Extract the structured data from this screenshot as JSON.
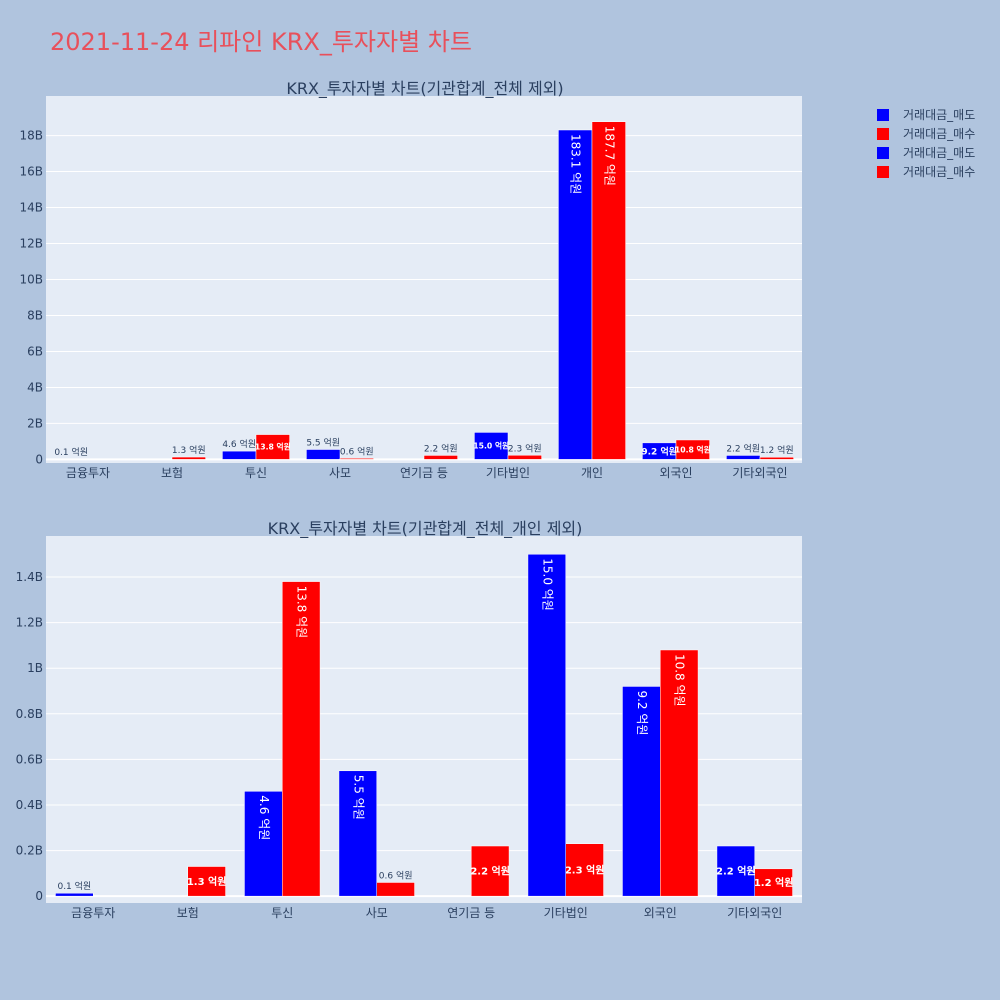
{
  "page_title": "2021-11-24 리파인 KRX_투자자별 차트",
  "legend": [
    {
      "label": "거래대금_매도",
      "color": "#0000ff"
    },
    {
      "label": "거래대금_매수",
      "color": "#ff0000"
    },
    {
      "label": "거래대금_매도",
      "color": "#0000ff"
    },
    {
      "label": "거래대금_매수",
      "color": "#ff0000"
    }
  ],
  "colors": {
    "sell": "#0000ff",
    "buy": "#ff0000",
    "plot_bg": "#e5ecf6",
    "page_bg": "#b0c4de"
  },
  "chart_data": [
    {
      "type": "bar",
      "title": "KRX_투자자별 차트(기관합계_전체 제외)",
      "categories": [
        "금융투자",
        "보험",
        "투신",
        "사모",
        "연기금 등",
        "기타법인",
        "개인",
        "외국인",
        "기타외국인"
      ],
      "series": [
        {
          "name": "거래대금_매도",
          "values": [
            0.013,
            0,
            0.46,
            0.55,
            0,
            1.5,
            18.31,
            0.92,
            0.22
          ],
          "labels": [
            "0.1 억원",
            "",
            "4.6 억원",
            "5.5 억원",
            "",
            "15.0 억원",
            "183.1 억원",
            "9.2 억원",
            "2.2 억원"
          ]
        },
        {
          "name": "거래대금_매수",
          "values": [
            0,
            0.13,
            1.38,
            0.06,
            0.22,
            0.23,
            18.77,
            1.08,
            0.12
          ],
          "labels": [
            "",
            "1.3 억원",
            "13.8 억원",
            "0.6 억원",
            "2.2 억원",
            "2.3 억원",
            "187.7 억원",
            "10.8 억원",
            "1.2 억원"
          ]
        }
      ],
      "y_ticks": [
        "0",
        "2B",
        "4B",
        "6B",
        "8B",
        "10B",
        "12B",
        "14B",
        "16B",
        "18B"
      ],
      "y_tick_values": [
        0,
        2,
        4,
        6,
        8,
        10,
        12,
        14,
        16,
        18
      ],
      "ylim": [
        -0.2,
        20.2
      ],
      "grid": true
    },
    {
      "type": "bar",
      "title": "KRX_투자자별 차트(기관합계_전체_개인 제외)",
      "categories": [
        "금융투자",
        "보험",
        "투신",
        "사모",
        "연기금 등",
        "기타법인",
        "외국인",
        "기타외국인"
      ],
      "series": [
        {
          "name": "거래대금_매도",
          "values": [
            0.013,
            0,
            0.46,
            0.55,
            0,
            1.5,
            0.92,
            0.22
          ],
          "labels": [
            "0.1 억원",
            "",
            "4.6 억원",
            "5.5 억원",
            "",
            "15.0 억원",
            "9.2 억원",
            "2.2 억원"
          ]
        },
        {
          "name": "거래대금_매수",
          "values": [
            0,
            0.13,
            1.38,
            0.06,
            0.22,
            0.23,
            1.08,
            0.12
          ],
          "labels": [
            "",
            "1.3 억원",
            "13.8 억원",
            "0.6 억원",
            "2.2 억원",
            "2.3 억원",
            "10.8 억원",
            "1.2 억원"
          ]
        }
      ],
      "y_ticks": [
        "0",
        "0.2B",
        "0.4B",
        "0.6B",
        "0.8B",
        "1B",
        "1.2B",
        "1.4B"
      ],
      "y_tick_values": [
        0,
        0.2,
        0.4,
        0.6,
        0.8,
        1.0,
        1.2,
        1.4
      ],
      "ylim": [
        -0.03,
        1.58
      ],
      "grid": true
    }
  ]
}
